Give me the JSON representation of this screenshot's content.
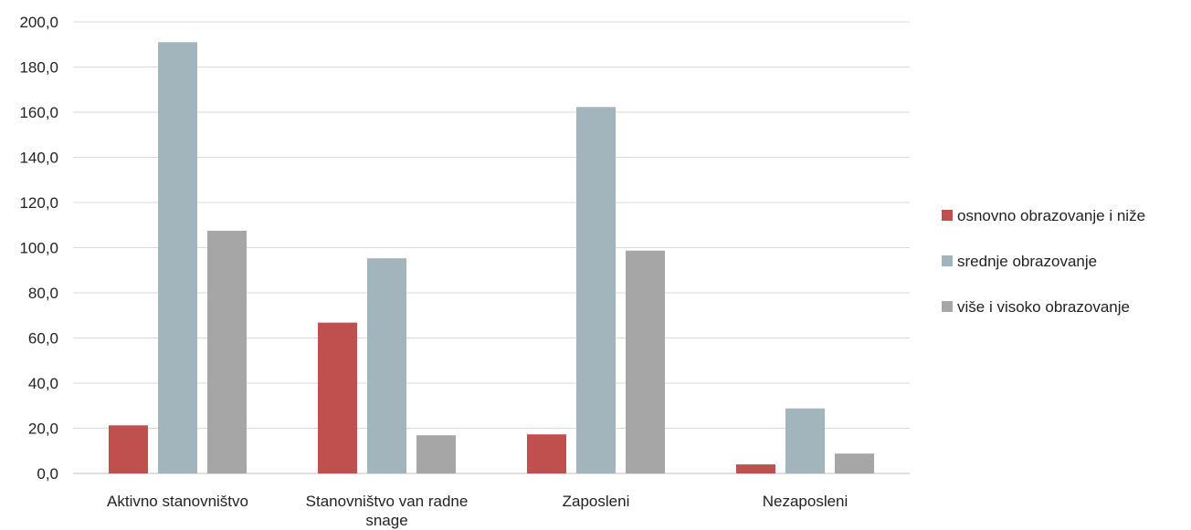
{
  "chart_data": {
    "type": "bar",
    "categories": [
      [
        "Aktivno stanovništvo"
      ],
      [
        "Stanovništvo van radne",
        "snage"
      ],
      [
        "Zaposleni"
      ],
      [
        "Nezaposleni"
      ]
    ],
    "series": [
      {
        "name": "osnovno obrazovanje i niže",
        "color": "#c0504d",
        "values": [
          21.3,
          66.8,
          17.3,
          4.0
        ]
      },
      {
        "name": "srednje obrazovanje",
        "color": "#a2b5bd",
        "values": [
          191.0,
          95.3,
          162.3,
          28.8
        ]
      },
      {
        "name": "više i visoko obrazovanje",
        "color": "#a6a6a6",
        "values": [
          107.5,
          16.9,
          98.7,
          8.8
        ]
      }
    ],
    "yticks": [
      "0,0",
      "20,0",
      "40,0",
      "60,0",
      "80,0",
      "100,0",
      "120,0",
      "140,0",
      "160,0",
      "180,0",
      "200,0"
    ],
    "ylim": [
      0,
      200
    ],
    "grid": true,
    "legend_position": "right",
    "title": "",
    "xlabel": "",
    "ylabel": ""
  }
}
